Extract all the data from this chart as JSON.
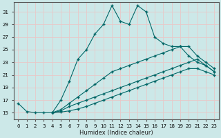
{
  "xlabel": "Humidex (Indice chaleur)",
  "ylabel": "",
  "bg_color": "#cce8e8",
  "grid_color": "#e8c8c8",
  "line_color": "#006666",
  "xlim": [
    -0.5,
    23.5
  ],
  "ylim": [
    14,
    32.5
  ],
  "yticks": [
    15,
    17,
    19,
    21,
    23,
    25,
    27,
    29,
    31
  ],
  "xticks": [
    0,
    1,
    2,
    3,
    4,
    5,
    6,
    7,
    8,
    9,
    10,
    11,
    12,
    13,
    14,
    15,
    16,
    17,
    18,
    19,
    20,
    21,
    22,
    23
  ],
  "series1_x": [
    0,
    1,
    2,
    3,
    4,
    5,
    6,
    7,
    8,
    9,
    10,
    11,
    12,
    13,
    14,
    15,
    16,
    17,
    18,
    19,
    20,
    21,
    22,
    23
  ],
  "series1_y": [
    16.5,
    15.2,
    15,
    15,
    15,
    17,
    20,
    23.5,
    25,
    27.5,
    29,
    32,
    29.5,
    29,
    32,
    31,
    27,
    26,
    25.5,
    25.5,
    24,
    23,
    22.5,
    21.5
  ],
  "series2_x": [
    4,
    5,
    6,
    7,
    8,
    9,
    10,
    11,
    12,
    13,
    14,
    15,
    16,
    17,
    18,
    19,
    20,
    21,
    22,
    23
  ],
  "series2_y": [
    15,
    15.5,
    16.5,
    17.5,
    18.5,
    19.5,
    20.5,
    21.5,
    22,
    22.5,
    23,
    23.5,
    24,
    24.5,
    25,
    25.5,
    25.5,
    24,
    23,
    22
  ],
  "series3_x": [
    4,
    5,
    6,
    7,
    8,
    9,
    10,
    11,
    12,
    13,
    14,
    15,
    16,
    17,
    18,
    19,
    20,
    21,
    22,
    23
  ],
  "series3_y": [
    15,
    15.3,
    16,
    16.5,
    17,
    17.5,
    18,
    18.5,
    19,
    19.5,
    20,
    20.5,
    21,
    21.5,
    22,
    22.5,
    23,
    23.5,
    22.5,
    21.5
  ],
  "series4_x": [
    4,
    5,
    6,
    7,
    8,
    9,
    10,
    11,
    12,
    13,
    14,
    15,
    16,
    17,
    18,
    19,
    20,
    21,
    22,
    23
  ],
  "series4_y": [
    15,
    15.1,
    15.3,
    15.6,
    16,
    16.5,
    17,
    17.5,
    18,
    18.5,
    19,
    19.5,
    20,
    20.5,
    21,
    21.5,
    22,
    22,
    21.5,
    21
  ]
}
